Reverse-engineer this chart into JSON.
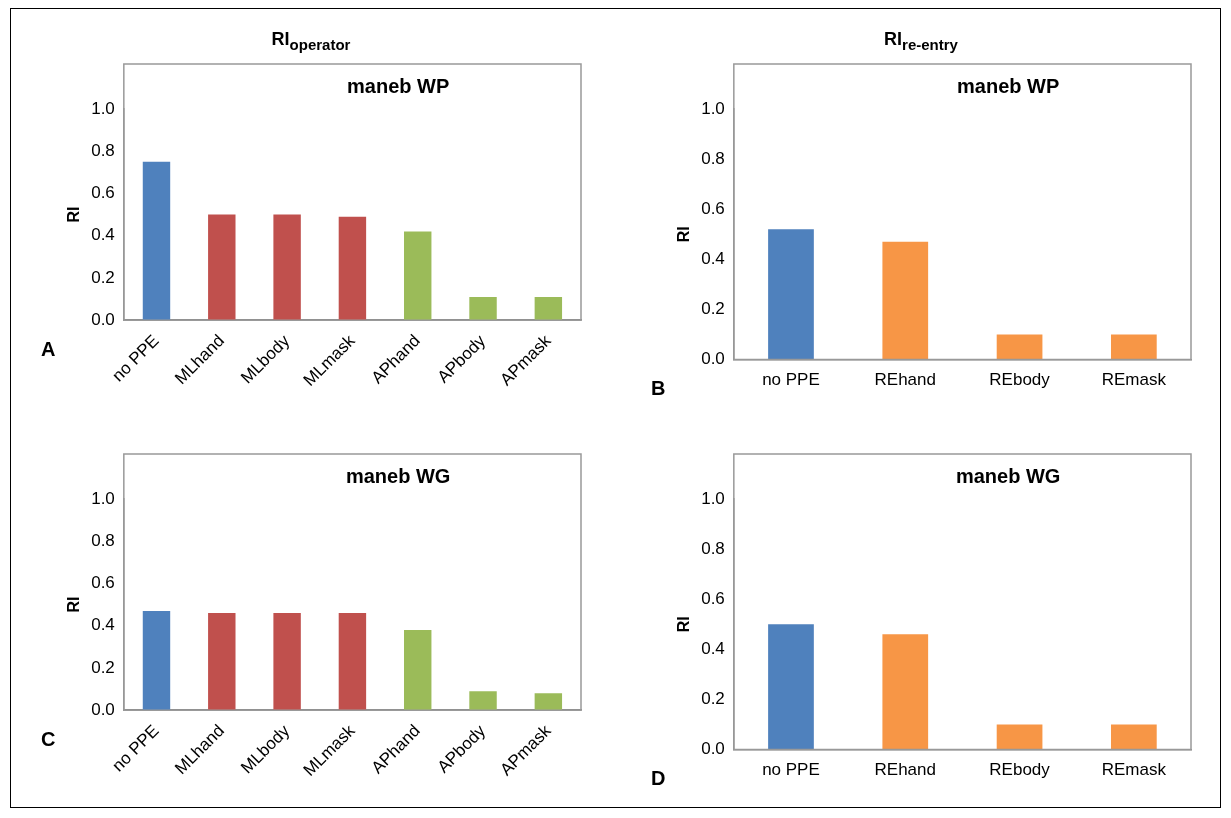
{
  "chart_data": [
    {
      "type": "bar",
      "subtitle": "RI$_{operator}$",
      "title": "maneb WP",
      "ylabel": "RI",
      "categories": [
        "no PPE",
        "MLhand",
        "MLbody",
        "MLmask",
        "APhand",
        "APbody",
        "APmask"
      ],
      "values": [
        0.75,
        0.5,
        0.5,
        0.49,
        0.42,
        0.11,
        0.11
      ],
      "colors": [
        "#4f81bd",
        "#c0504d",
        "#c0504d",
        "#c0504d",
        "#9bbb59",
        "#9bbb59",
        "#9bbb59"
      ],
      "ylim": [
        0,
        1
      ],
      "yticks": [
        {
          "value": 0,
          "label": "0.0"
        },
        {
          "value": 0.2,
          "label": "0.2"
        },
        {
          "value": 0.4,
          "label": "0.4"
        },
        {
          "value": 0.6,
          "label": "0.6"
        },
        {
          "value": 0.8,
          "label": "0.8"
        },
        {
          "value": 1,
          "label": "1.0"
        }
      ],
      "grid": false,
      "legend": false,
      "annotations": [
        "A"
      ]
    },
    {
      "type": "bar",
      "subtitle": "RI$_{re-entry}$",
      "title": "maneb WP",
      "ylabel": "RI",
      "categories": [
        "no PPE",
        "REhand",
        "REbody",
        "REmask"
      ],
      "values": [
        0.52,
        0.47,
        0.1,
        0.1
      ],
      "colors": [
        "#4f81bd",
        "#f79646",
        "#f79646",
        "#f79646"
      ],
      "ylim": [
        0,
        1
      ],
      "yticks": [
        {
          "value": 0,
          "label": "0.0"
        },
        {
          "value": 0.2,
          "label": "0.2"
        },
        {
          "value": 0.4,
          "label": "0.4"
        },
        {
          "value": 0.6,
          "label": "0.6"
        },
        {
          "value": 0.8,
          "label": "0.8"
        },
        {
          "value": 1,
          "label": "1.0"
        }
      ],
      "grid": false,
      "legend": false,
      "annotations": [
        "B"
      ]
    },
    {
      "type": "bar",
      "title": "maneb WG",
      "ylabel": "RI",
      "categories": [
        "no PPE",
        "MLhand",
        "MLbody",
        "MLmask",
        "APhand",
        "APbody",
        "APmask"
      ],
      "values": [
        0.47,
        0.46,
        0.46,
        0.46,
        0.38,
        0.09,
        0.08
      ],
      "colors": [
        "#4f81bd",
        "#c0504d",
        "#c0504d",
        "#c0504d",
        "#9bbb59",
        "#9bbb59",
        "#9bbb59"
      ],
      "ylim": [
        0,
        1
      ],
      "yticks": [
        {
          "value": 0,
          "label": "0.0"
        },
        {
          "value": 0.2,
          "label": "0.2"
        },
        {
          "value": 0.4,
          "label": "0.4"
        },
        {
          "value": 0.6,
          "label": "0.6"
        },
        {
          "value": 0.8,
          "label": "0.8"
        },
        {
          "value": 1,
          "label": "1.0"
        }
      ],
      "grid": false,
      "legend": false,
      "annotations": [
        "C"
      ]
    },
    {
      "type": "bar",
      "title": "maneb WG",
      "ylabel": "RI",
      "categories": [
        "no PPE",
        "REhand",
        "REbody",
        "REmask"
      ],
      "values": [
        0.5,
        0.46,
        0.1,
        0.1
      ],
      "colors": [
        "#4f81bd",
        "#f79646",
        "#f79646",
        "#f79646"
      ],
      "ylim": [
        0,
        1
      ],
      "yticks": [
        {
          "value": 0,
          "label": "0.0"
        },
        {
          "value": 0.2,
          "label": "0.2"
        },
        {
          "value": 0.4,
          "label": "0.4"
        },
        {
          "value": 0.6,
          "label": "0.6"
        },
        {
          "value": 0.8,
          "label": "0.8"
        },
        {
          "value": 1,
          "label": "1.0"
        }
      ],
      "grid": false,
      "legend": false,
      "annotations": [
        "D"
      ]
    }
  ]
}
